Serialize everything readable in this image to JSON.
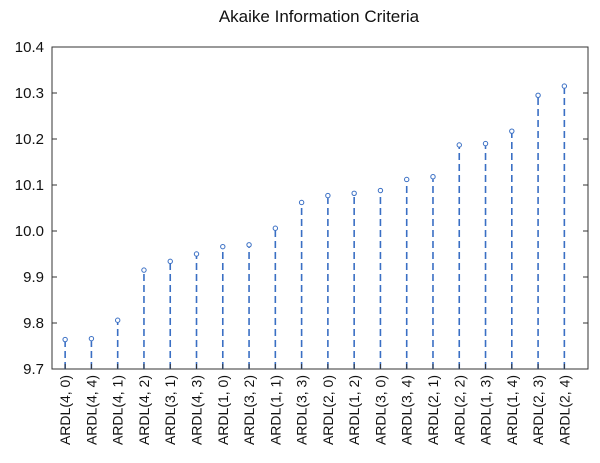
{
  "chart_data": {
    "type": "scatter",
    "style": "dashed-stem",
    "title": "Akaike Information Criteria",
    "xlabel": "",
    "ylabel": "",
    "ylim": [
      9.7,
      10.4
    ],
    "yticks": [
      "9.7",
      "9.8",
      "9.9",
      "10.0",
      "10.1",
      "10.2",
      "10.3",
      "10.4"
    ],
    "grid": false,
    "categories": [
      "ARDL(4, 0)",
      "ARDL(4, 4)",
      "ARDL(4, 1)",
      "ARDL(4, 2)",
      "ARDL(3, 1)",
      "ARDL(4, 3)",
      "ARDL(1, 0)",
      "ARDL(3, 2)",
      "ARDL(1, 1)",
      "ARDL(3, 3)",
      "ARDL(2, 0)",
      "ARDL(1, 2)",
      "ARDL(3, 0)",
      "ARDL(3, 4)",
      "ARDL(2, 1)",
      "ARDL(2, 2)",
      "ARDL(1, 3)",
      "ARDL(1, 4)",
      "ARDL(2, 3)",
      "ARDL(2, 4)"
    ],
    "values": [
      9.764,
      9.766,
      9.806,
      9.915,
      9.934,
      9.95,
      9.966,
      9.97,
      10.006,
      10.062,
      10.077,
      10.082,
      10.088,
      10.112,
      10.118,
      10.187,
      10.19,
      10.217,
      10.295,
      10.315
    ],
    "colors": {
      "series": "#3a6fc4",
      "axis": "#333333"
    }
  }
}
